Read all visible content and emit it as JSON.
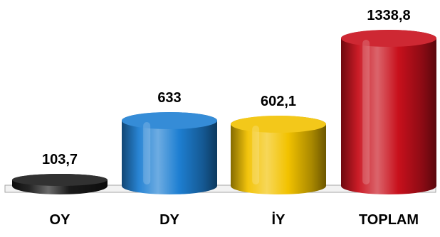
{
  "chart_data": {
    "type": "bar",
    "title": "",
    "xlabel": "",
    "ylabel": "",
    "categories": [
      "OY",
      "DY",
      "İY",
      "TOPLAM"
    ],
    "values": [
      103.7,
      633,
      602.1,
      1338.8
    ],
    "data_labels": [
      "103,7",
      "633",
      "602,1",
      "1338,8"
    ],
    "colors": [
      "#1a1a1a",
      "#1e7fd2",
      "#f2c200",
      "#c8101c"
    ],
    "grid": false,
    "legend": "none",
    "style": "3d-cylinder"
  }
}
